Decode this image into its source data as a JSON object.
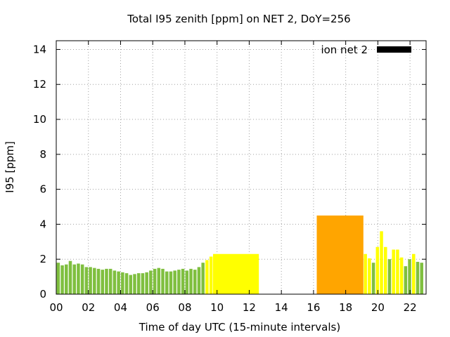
{
  "chart_data": {
    "type": "bar",
    "title": "Total I95 zenith [ppm] on NET 2, DoY=256",
    "xlabel": "Time of day UTC (15-minute intervals)",
    "ylabel": "I95 [ppm]",
    "xlim": [
      0,
      23
    ],
    "ylim": [
      0,
      14.5
    ],
    "x_ticks": [
      "00",
      "02",
      "04",
      "06",
      "08",
      "10",
      "12",
      "14",
      "16",
      "18",
      "20",
      "22"
    ],
    "x_tick_values": [
      0,
      2,
      4,
      6,
      8,
      10,
      12,
      14,
      16,
      18,
      20,
      22
    ],
    "y_ticks": [
      "0",
      "2",
      "4",
      "6",
      "8",
      "10",
      "12",
      "14"
    ],
    "y_tick_values": [
      0,
      2,
      4,
      6,
      8,
      10,
      12,
      14
    ],
    "grid": true,
    "legend": {
      "label": "ion net 2",
      "placement": "top-right",
      "color": "#000000"
    },
    "colors": {
      "green": "#7fbf3f",
      "yellow": "#ffff00",
      "orange": "#ffa500"
    },
    "bars": [
      {
        "x0": 0.0,
        "x1": 0.25,
        "y": 1.8,
        "color": "green"
      },
      {
        "x0": 0.25,
        "x1": 0.5,
        "y": 1.65,
        "color": "green"
      },
      {
        "x0": 0.5,
        "x1": 0.75,
        "y": 1.7,
        "color": "green"
      },
      {
        "x0": 0.75,
        "x1": 1.0,
        "y": 1.9,
        "color": "green"
      },
      {
        "x0": 1.0,
        "x1": 1.25,
        "y": 1.7,
        "color": "green"
      },
      {
        "x0": 1.25,
        "x1": 1.5,
        "y": 1.75,
        "color": "green"
      },
      {
        "x0": 1.5,
        "x1": 1.75,
        "y": 1.7,
        "color": "green"
      },
      {
        "x0": 1.75,
        "x1": 2.0,
        "y": 1.55,
        "color": "green"
      },
      {
        "x0": 2.0,
        "x1": 2.25,
        "y": 1.55,
        "color": "green"
      },
      {
        "x0": 2.25,
        "x1": 2.5,
        "y": 1.5,
        "color": "green"
      },
      {
        "x0": 2.5,
        "x1": 2.75,
        "y": 1.45,
        "color": "green"
      },
      {
        "x0": 2.75,
        "x1": 3.0,
        "y": 1.4,
        "color": "green"
      },
      {
        "x0": 3.0,
        "x1": 3.25,
        "y": 1.45,
        "color": "green"
      },
      {
        "x0": 3.25,
        "x1": 3.5,
        "y": 1.45,
        "color": "green"
      },
      {
        "x0": 3.5,
        "x1": 3.75,
        "y": 1.35,
        "color": "green"
      },
      {
        "x0": 3.75,
        "x1": 4.0,
        "y": 1.3,
        "color": "green"
      },
      {
        "x0": 4.0,
        "x1": 4.25,
        "y": 1.25,
        "color": "green"
      },
      {
        "x0": 4.25,
        "x1": 4.5,
        "y": 1.2,
        "color": "green"
      },
      {
        "x0": 4.5,
        "x1": 4.75,
        "y": 1.1,
        "color": "green"
      },
      {
        "x0": 4.75,
        "x1": 5.0,
        "y": 1.15,
        "color": "green"
      },
      {
        "x0": 5.0,
        "x1": 5.25,
        "y": 1.2,
        "color": "green"
      },
      {
        "x0": 5.25,
        "x1": 5.5,
        "y": 1.2,
        "color": "green"
      },
      {
        "x0": 5.5,
        "x1": 5.75,
        "y": 1.25,
        "color": "green"
      },
      {
        "x0": 5.75,
        "x1": 6.0,
        "y": 1.35,
        "color": "green"
      },
      {
        "x0": 6.0,
        "x1": 6.25,
        "y": 1.45,
        "color": "green"
      },
      {
        "x0": 6.25,
        "x1": 6.5,
        "y": 1.5,
        "color": "green"
      },
      {
        "x0": 6.5,
        "x1": 6.75,
        "y": 1.45,
        "color": "green"
      },
      {
        "x0": 6.75,
        "x1": 7.0,
        "y": 1.3,
        "color": "green"
      },
      {
        "x0": 7.0,
        "x1": 7.25,
        "y": 1.3,
        "color": "green"
      },
      {
        "x0": 7.25,
        "x1": 7.5,
        "y": 1.35,
        "color": "green"
      },
      {
        "x0": 7.5,
        "x1": 7.75,
        "y": 1.4,
        "color": "green"
      },
      {
        "x0": 7.75,
        "x1": 8.0,
        "y": 1.45,
        "color": "green"
      },
      {
        "x0": 8.0,
        "x1": 8.25,
        "y": 1.35,
        "color": "green"
      },
      {
        "x0": 8.25,
        "x1": 8.5,
        "y": 1.45,
        "color": "green"
      },
      {
        "x0": 8.5,
        "x1": 8.75,
        "y": 1.4,
        "color": "green"
      },
      {
        "x0": 8.75,
        "x1": 9.0,
        "y": 1.55,
        "color": "green"
      },
      {
        "x0": 9.0,
        "x1": 9.25,
        "y": 1.8,
        "color": "green"
      },
      {
        "x0": 9.25,
        "x1": 9.5,
        "y": 1.95,
        "color": "yellow"
      },
      {
        "x0": 9.5,
        "x1": 9.75,
        "y": 2.15,
        "color": "yellow"
      },
      {
        "x0": 9.75,
        "x1": 12.6,
        "y": 2.3,
        "color": "yellow"
      },
      {
        "x0": 16.2,
        "x1": 19.1,
        "y": 4.5,
        "color": "orange"
      },
      {
        "x0": 19.1,
        "x1": 19.35,
        "y": 2.3,
        "color": "yellow"
      },
      {
        "x0": 19.35,
        "x1": 19.6,
        "y": 2.05,
        "color": "yellow"
      },
      {
        "x0": 19.6,
        "x1": 19.85,
        "y": 1.8,
        "color": "green"
      },
      {
        "x0": 19.85,
        "x1": 20.1,
        "y": 2.7,
        "color": "yellow"
      },
      {
        "x0": 20.1,
        "x1": 20.35,
        "y": 3.6,
        "color": "yellow"
      },
      {
        "x0": 20.35,
        "x1": 20.6,
        "y": 2.7,
        "color": "yellow"
      },
      {
        "x0": 20.6,
        "x1": 20.85,
        "y": 2.0,
        "color": "green"
      },
      {
        "x0": 20.85,
        "x1": 21.1,
        "y": 2.55,
        "color": "yellow"
      },
      {
        "x0": 21.1,
        "x1": 21.35,
        "y": 2.55,
        "color": "yellow"
      },
      {
        "x0": 21.35,
        "x1": 21.6,
        "y": 2.1,
        "color": "yellow"
      },
      {
        "x0": 21.6,
        "x1": 21.85,
        "y": 1.6,
        "color": "green"
      },
      {
        "x0": 21.85,
        "x1": 22.1,
        "y": 2.0,
        "color": "green"
      },
      {
        "x0": 22.1,
        "x1": 22.35,
        "y": 2.3,
        "color": "yellow"
      },
      {
        "x0": 22.35,
        "x1": 22.6,
        "y": 1.85,
        "color": "green"
      },
      {
        "x0": 22.6,
        "x1": 22.85,
        "y": 1.8,
        "color": "green"
      }
    ]
  }
}
